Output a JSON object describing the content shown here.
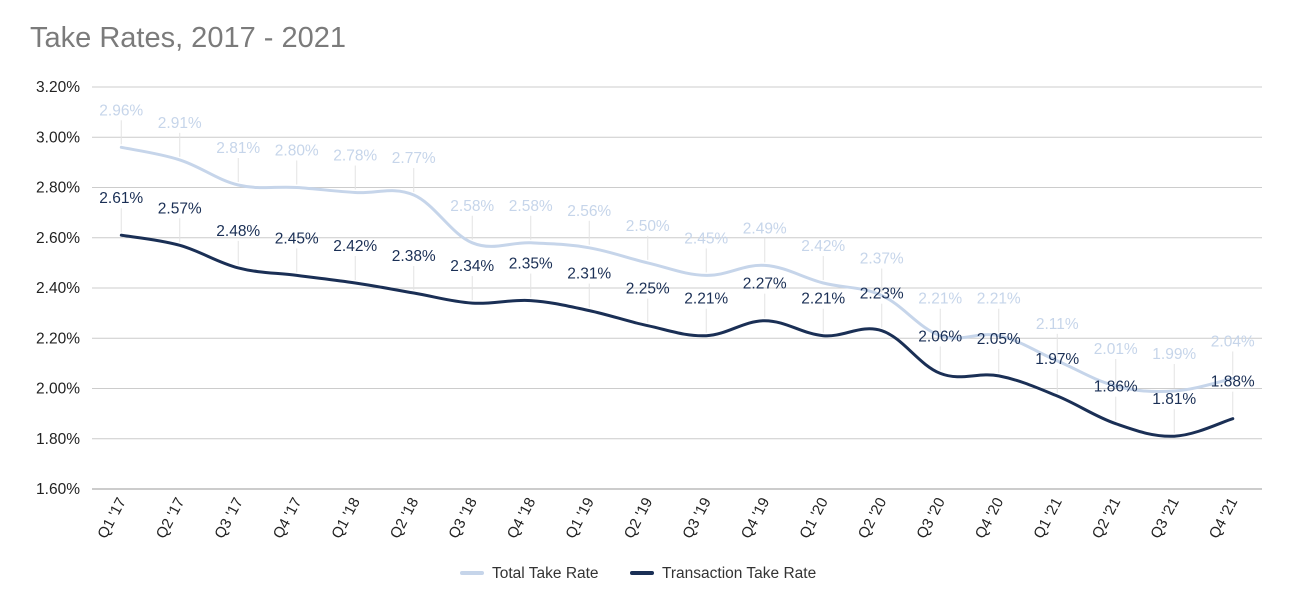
{
  "chart_data": {
    "type": "line",
    "title": "Take Rates, 2017 - 2021",
    "xlabel": "",
    "ylabel": "",
    "categories": [
      "Q1 '17",
      "Q2 '17",
      "Q3 '17",
      "Q4 '17",
      "Q1 '18",
      "Q2 '18",
      "Q3 '18",
      "Q4 '18",
      "Q1 '19",
      "Q2 '19",
      "Q3 '19",
      "Q4 '19",
      "Q1 '20",
      "Q2 '20",
      "Q3 '20",
      "Q4 '20",
      "Q1 '21",
      "Q2 '21",
      "Q3 '21",
      "Q4 '21"
    ],
    "ylim": [
      1.6,
      3.2
    ],
    "yticks": [
      1.6,
      1.8,
      2.0,
      2.2,
      2.4,
      2.6,
      2.8,
      3.0,
      3.2
    ],
    "ytick_labels": [
      "1.60%",
      "1.80%",
      "2.00%",
      "2.20%",
      "2.40%",
      "2.60%",
      "2.80%",
      "3.00%",
      "3.20%"
    ],
    "grid": true,
    "legend_position": "bottom-center",
    "series": [
      {
        "name": "Total Take Rate",
        "color": "#c6d5ea",
        "values": [
          2.96,
          2.91,
          2.81,
          2.8,
          2.78,
          2.77,
          2.58,
          2.58,
          2.56,
          2.5,
          2.45,
          2.49,
          2.42,
          2.37,
          2.21,
          2.21,
          2.11,
          2.01,
          1.99,
          2.04
        ],
        "labels": [
          "2.96%",
          "2.91%",
          "2.81%",
          "2.80%",
          "2.78%",
          "2.77%",
          "2.58%",
          "2.58%",
          "2.56%",
          "2.50%",
          "2.45%",
          "2.49%",
          "2.42%",
          "2.37%",
          "2.21%",
          "2.21%",
          "2.11%",
          "2.01%",
          "1.99%",
          "2.04%"
        ]
      },
      {
        "name": "Transaction Take Rate",
        "color": "#1a2f55",
        "values": [
          2.61,
          2.57,
          2.48,
          2.45,
          2.42,
          2.38,
          2.34,
          2.35,
          2.31,
          2.25,
          2.21,
          2.27,
          2.21,
          2.23,
          2.06,
          2.05,
          1.97,
          1.86,
          1.81,
          1.88
        ],
        "labels": [
          "2.61%",
          "2.57%",
          "2.48%",
          "2.45%",
          "2.42%",
          "2.38%",
          "2.34%",
          "2.35%",
          "2.31%",
          "2.25%",
          "2.21%",
          "2.27%",
          "2.21%",
          "2.23%",
          "2.06%",
          "2.05%",
          "1.97%",
          "1.86%",
          "1.81%",
          "1.88%"
        ]
      }
    ]
  }
}
